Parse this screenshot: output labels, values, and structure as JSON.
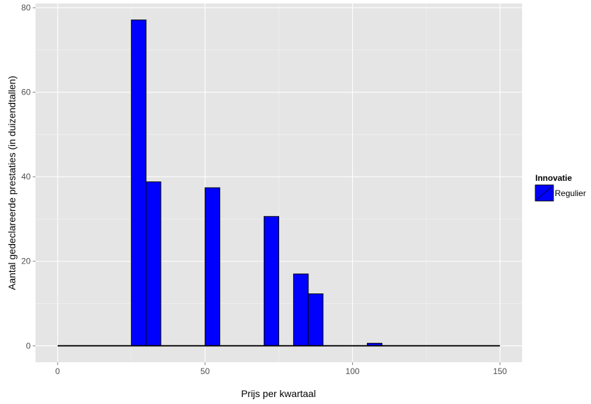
{
  "chart_data": {
    "type": "bar",
    "xlabel": "Prijs per kwartaal",
    "ylabel": "Aantal gedeclareerde prestaties (in duizendtallen)",
    "xlim": [
      -7.5,
      157.5
    ],
    "ylim": [
      -3.9,
      81
    ],
    "x_ticks": [
      0,
      50,
      100,
      150
    ],
    "x_tick_labels": [
      "0",
      "50",
      "100",
      "150"
    ],
    "y_ticks": [
      0,
      20,
      40,
      60,
      80
    ],
    "y_tick_labels": [
      "0",
      "20",
      "40",
      "60",
      "80"
    ],
    "grid": true,
    "bin_width": 5,
    "baseline": [
      0,
      150
    ],
    "bars": [
      {
        "x0": 25,
        "x1": 30,
        "value": 77.1
      },
      {
        "x0": 30,
        "x1": 35,
        "value": 38.8
      },
      {
        "x0": 50,
        "x1": 55,
        "value": 37.4
      },
      {
        "x0": 70,
        "x1": 75,
        "value": 30.6
      },
      {
        "x0": 80,
        "x1": 85,
        "value": 17.0
      },
      {
        "x0": 85,
        "x1": 90,
        "value": 12.3
      },
      {
        "x0": 105,
        "x1": 110,
        "value": 0.6
      }
    ],
    "fill_color": "#0000ff",
    "outline_color": "#000000",
    "panel_background": "#e5e5e5",
    "legend": {
      "title": "Innovatie",
      "entries": [
        {
          "label": "Regulier",
          "color": "#0000ff"
        }
      ],
      "position": "right"
    }
  }
}
